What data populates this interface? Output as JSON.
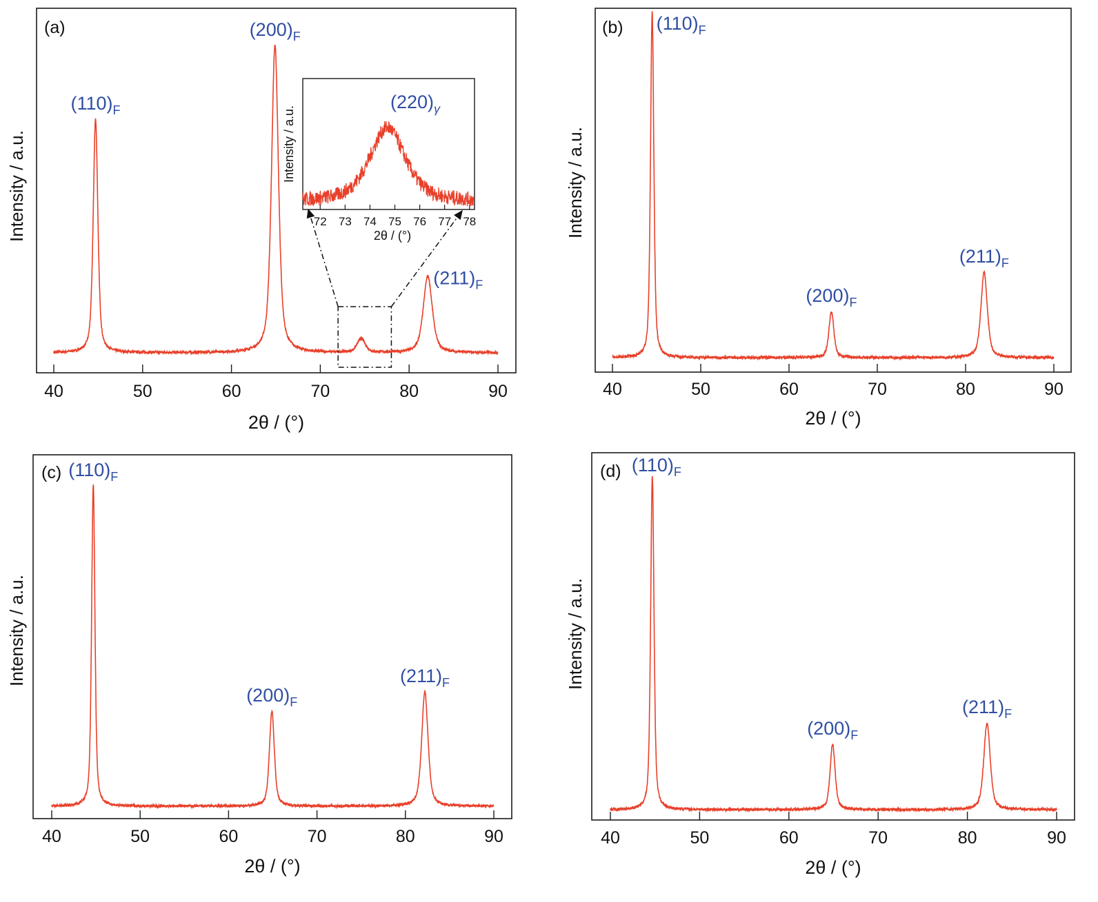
{
  "colors": {
    "trace": "#e8402a",
    "peak_label": "#2f4ea3",
    "axis": "#1a1a1a"
  },
  "chart_data": [
    {
      "panel": "(a)",
      "type": "line",
      "xlabel": "2θ / (°)",
      "ylabel": "Intensity / a.u.",
      "xlim": [
        38,
        92
      ],
      "xticks": [
        40,
        50,
        60,
        70,
        80,
        90
      ],
      "grid": false,
      "y_tick_labels": false,
      "peaks": [
        {
          "label": "(110)",
          "sub": "F",
          "x": 44.7,
          "intensity": 0.76
        },
        {
          "label": "(200)",
          "sub": "F",
          "x": 64.9,
          "intensity": 1.0
        },
        {
          "label": "(211)",
          "sub": "F",
          "x": 82.1,
          "intensity": 0.25
        },
        {
          "label": "",
          "sub": "",
          "x": 74.6,
          "intensity": 0.045
        }
      ],
      "zoom_region": [
        72,
        78
      ],
      "inset": {
        "type": "line",
        "xlabel": "2θ / (°)",
        "ylabel": "Intensity / a.u.",
        "xlim": [
          71.3,
          78.2
        ],
        "xticks": [
          72,
          73,
          74,
          75,
          76,
          77,
          78
        ],
        "peaks": [
          {
            "label": "(220)",
            "sub": "γ",
            "x": 74.7,
            "intensity": 1.0
          }
        ]
      }
    },
    {
      "panel": "(b)",
      "type": "line",
      "xlabel": "2θ / (°)",
      "ylabel": "Intensity / a.u.",
      "xlim": [
        38,
        92
      ],
      "xticks": [
        40,
        50,
        60,
        70,
        80,
        90
      ],
      "grid": false,
      "y_tick_labels": false,
      "peaks": [
        {
          "label": "(110)",
          "sub": "F",
          "x": 44.5,
          "intensity": 1.0
        },
        {
          "label": "(200)",
          "sub": "F",
          "x": 64.8,
          "intensity": 0.133
        },
        {
          "label": "(211)",
          "sub": "F",
          "x": 82.1,
          "intensity": 0.247
        }
      ]
    },
    {
      "panel": "(c)",
      "type": "line",
      "xlabel": "2θ / (°)",
      "ylabel": "Intensity / a.u.",
      "xlim": [
        38,
        92
      ],
      "xticks": [
        40,
        50,
        60,
        70,
        80,
        90
      ],
      "grid": false,
      "y_tick_labels": false,
      "peaks": [
        {
          "label": "(110)",
          "sub": "F",
          "x": 44.7,
          "intensity": 1.0
        },
        {
          "label": "(200)",
          "sub": "F",
          "x": 64.9,
          "intensity": 0.295
        },
        {
          "label": "(211)",
          "sub": "F",
          "x": 82.2,
          "intensity": 0.355
        }
      ]
    },
    {
      "panel": "(d)",
      "type": "line",
      "xlabel": "2θ / (°)",
      "ylabel": "Intensity / a.u.",
      "xlim": [
        38,
        92
      ],
      "xticks": [
        40,
        50,
        60,
        70,
        80,
        90
      ],
      "grid": false,
      "y_tick_labels": false,
      "peaks": [
        {
          "label": "(110)",
          "sub": "F",
          "x": 44.7,
          "intensity": 1.0
        },
        {
          "label": "(200)",
          "sub": "F",
          "x": 64.9,
          "intensity": 0.196
        },
        {
          "label": "(211)",
          "sub": "F",
          "x": 82.2,
          "intensity": 0.26
        }
      ]
    }
  ]
}
